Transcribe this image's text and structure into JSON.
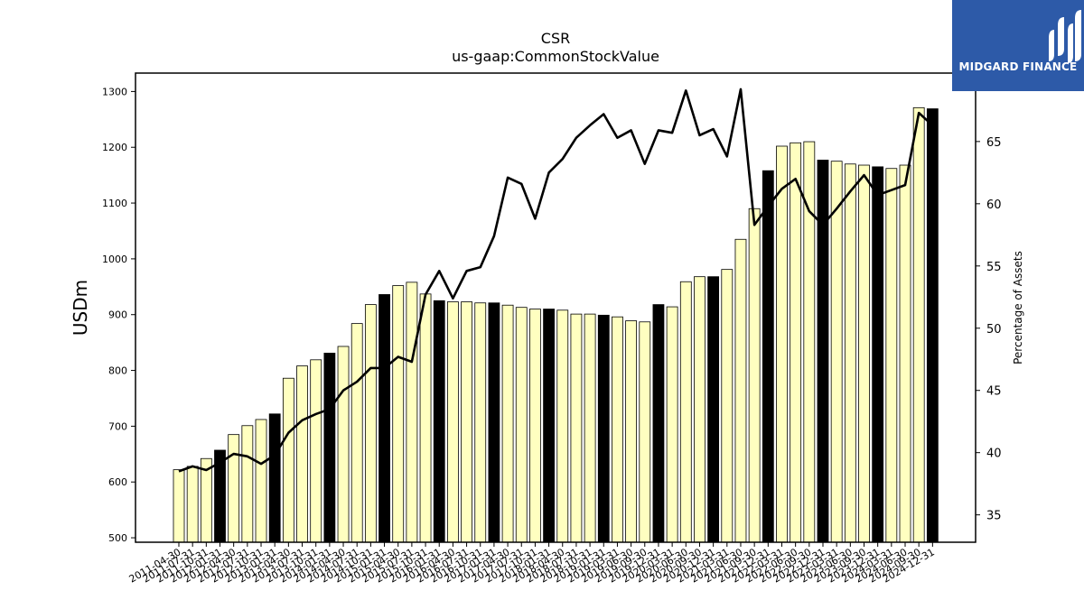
{
  "brand": {
    "name": "MIDGARD FINANCE",
    "logo_color": "#2d5aa8"
  },
  "chart_data": {
    "type": "bar",
    "title": "CSR",
    "subtitle": "us-gaap:CommonStockValue",
    "ylabel": "USDm",
    "y2label": "Percentage of Assets",
    "ylim": [
      492,
      1333
    ],
    "y2lim": [
      32.8,
      70.5
    ],
    "yticks": [
      500,
      600,
      700,
      800,
      900,
      1000,
      1100,
      1200,
      1300
    ],
    "y2ticks": [
      35,
      40,
      45,
      50,
      55,
      60,
      65
    ],
    "colors": {
      "bar": "#ffffc0",
      "bar_fy": "#000000",
      "line": "#000000",
      "edge": "#000000"
    },
    "categories": [
      "2011-04-30",
      "2011-07-31",
      "2011-10-31",
      "2012-01-31",
      "2012-04-30",
      "2012-07-31",
      "2012-10-31",
      "2013-01-31",
      "2013-04-30",
      "2013-07-31",
      "2013-10-31",
      "2014-01-31",
      "2014-04-30",
      "2014-07-31",
      "2014-10-31",
      "2015-01-31",
      "2015-04-30",
      "2015-07-31",
      "2015-10-31",
      "2016-01-31",
      "2016-04-30",
      "2016-07-31",
      "2016-10-31",
      "2017-01-31",
      "2017-04-30",
      "2017-07-31",
      "2017-10-31",
      "2018-01-31",
      "2018-04-30",
      "2018-07-31",
      "2018-10-31",
      "2019-01-31",
      "2019-03-31",
      "2019-06-30",
      "2019-09-30",
      "2019-12-31",
      "2020-03-31",
      "2020-06-30",
      "2020-09-30",
      "2020-12-31",
      "2021-03-31",
      "2021-06-30",
      "2021-09-30",
      "2021-12-31",
      "2022-03-31",
      "2022-06-30",
      "2022-09-30",
      "2022-12-31",
      "2023-03-31",
      "2023-06-30",
      "2023-09-30",
      "2023-12-31",
      "2024-03-31",
      "2024-06-30",
      "2024-09-30",
      "2024-12-31"
    ],
    "series": [
      {
        "kind": "bar",
        "values": [
          622,
          628,
          642,
          657,
          685,
          701,
          712,
          722,
          786,
          808,
          819,
          831,
          843,
          884,
          918,
          936,
          952,
          958,
          937,
          925,
          923,
          923,
          921,
          921,
          917,
          913,
          910,
          910,
          908,
          901,
          901,
          899,
          896,
          889,
          887,
          918,
          914,
          959,
          968,
          968,
          981,
          1035,
          1090,
          1158,
          1202,
          1208,
          1210,
          1177,
          1175,
          1170,
          1168,
          1165,
          1162,
          1168,
          1271,
          1269
        ],
        "highlight": [
          false,
          false,
          false,
          true,
          false,
          false,
          false,
          true,
          false,
          false,
          false,
          true,
          false,
          false,
          false,
          true,
          false,
          false,
          false,
          true,
          false,
          false,
          false,
          true,
          false,
          false,
          false,
          true,
          false,
          false,
          false,
          true,
          false,
          false,
          false,
          true,
          false,
          false,
          false,
          true,
          false,
          false,
          false,
          true,
          false,
          false,
          false,
          true,
          false,
          false,
          false,
          true,
          false,
          false,
          false,
          true
        ]
      },
      {
        "kind": "line",
        "axis": "right",
        "values": [
          38.5,
          38.9,
          38.6,
          39.2,
          39.9,
          39.7,
          39.1,
          39.8,
          41.6,
          42.6,
          43.1,
          43.5,
          45.0,
          45.7,
          46.8,
          46.8,
          47.7,
          47.3,
          52.7,
          54.6,
          52.4,
          54.6,
          54.9,
          57.4,
          62.1,
          61.6,
          58.8,
          62.5,
          63.6,
          65.3,
          66.3,
          67.2,
          65.3,
          65.9,
          63.2,
          65.9,
          65.7,
          69.1,
          65.5,
          66.0,
          63.8,
          69.2,
          58.3,
          59.8,
          61.2,
          62.0,
          59.4,
          58.3,
          59.6,
          61.0,
          62.3,
          60.7,
          61.1,
          61.5,
          67.3,
          66.3
        ]
      }
    ]
  }
}
